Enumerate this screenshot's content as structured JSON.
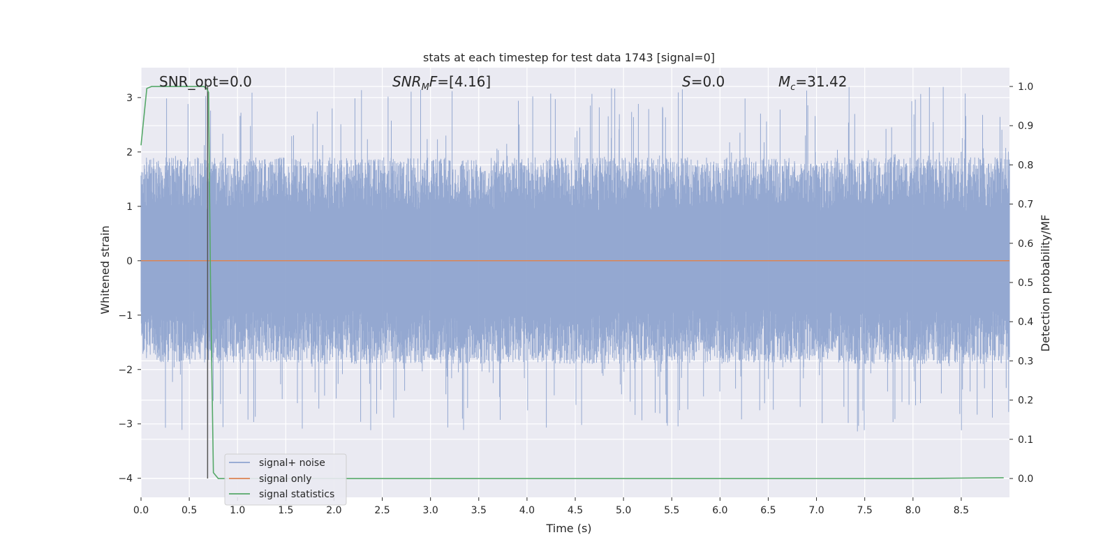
{
  "chart_data": {
    "type": "line",
    "title": "stats at each timestep for test data 1743 [signal=0]",
    "xlabel": "Time (s)",
    "ylabel": "Whitened strain",
    "ylabel_right": "Detection probability/MF",
    "xlim": [
      0,
      9.0
    ],
    "ylim": [
      -4.35,
      3.55
    ],
    "ylim_right": [
      -0.048,
      1.048
    ],
    "x_ticks": [
      "0.0",
      "0.5",
      "1.0",
      "1.5",
      "2.0",
      "2.5",
      "3.0",
      "3.5",
      "4.0",
      "4.5",
      "5.0",
      "5.5",
      "6.0",
      "6.5",
      "7.0",
      "7.5",
      "8.0",
      "8.5"
    ],
    "y_ticks": [
      "3",
      "2",
      "1",
      "0",
      "−1",
      "−2",
      "−3",
      "−4"
    ],
    "y_right_ticks": [
      "1.0",
      "0.9",
      "0.8",
      "0.7",
      "0.6",
      "0.5",
      "0.4",
      "0.3",
      "0.2",
      "0.1",
      "0.0"
    ],
    "grid": true,
    "legend_position": "lower-left",
    "annotations": {
      "snr_opt": "SNR_opt=0.0",
      "snr_mf": "SNR",
      "snr_mf_sub": "M",
      "snr_mf_tail": "F",
      "snr_mf_value": "=[4.16]",
      "s_sym": "S",
      "s_value": "=0.0",
      "mc_sym": "M",
      "mc_sub": "c",
      "mc_value": "=31.42"
    },
    "series": [
      {
        "name": "signal+ noise",
        "color": "#8fa4cf",
        "axis": "left",
        "style": "noise",
        "amplitude_typical": 1.9,
        "max": 3.2,
        "min": -3.15
      },
      {
        "name": "signal only",
        "color": "#dd8452",
        "axis": "left",
        "x": [
          0,
          9.0
        ],
        "values": [
          0,
          0
        ]
      },
      {
        "name": "signal statistics",
        "color": "#55a868",
        "axis": "right",
        "x": [
          0.0,
          0.06,
          0.11,
          0.2,
          0.5,
          0.65,
          0.68,
          0.7,
          0.72,
          0.75,
          0.8,
          0.9,
          1.2,
          2.0,
          4.0,
          6.0,
          8.0,
          8.94
        ],
        "values": [
          0.85,
          0.995,
          1.0,
          1.0,
          1.0,
          1.0,
          0.995,
          0.985,
          0.5,
          0.015,
          0.0,
          0.0,
          0.0,
          0.0,
          0.0,
          0.0,
          0.0,
          0.002
        ]
      }
    ],
    "marker_line_x": 0.69,
    "legend": [
      "signal+ noise",
      "signal only",
      "signal statistics"
    ]
  }
}
